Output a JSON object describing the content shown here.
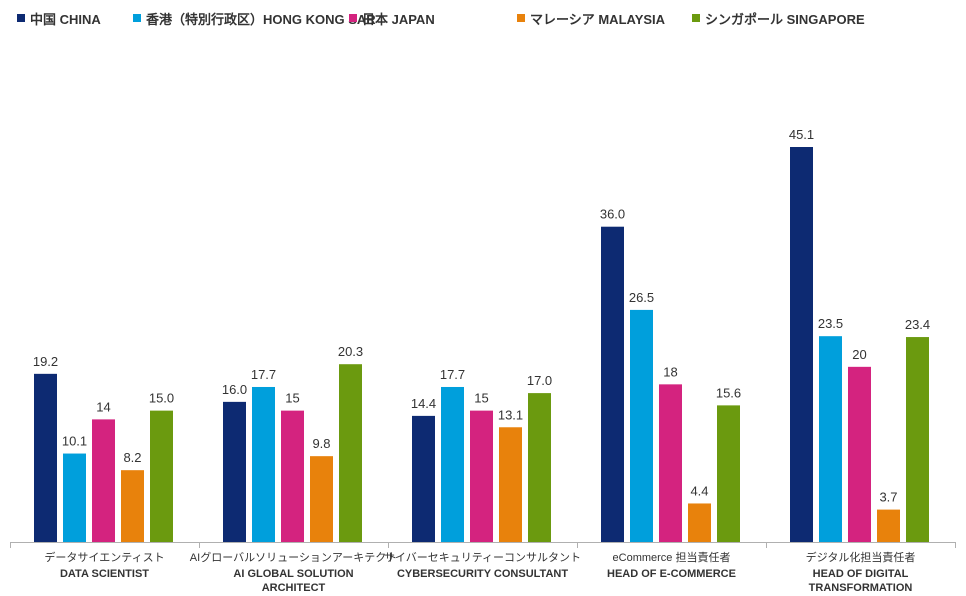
{
  "chart_data": {
    "type": "bar",
    "categories": [
      {
        "ja": "データサイエンティスト",
        "en": [
          "DATA SCIENTIST"
        ]
      },
      {
        "ja": "AIグローバルソリューションアーキテクト",
        "en": [
          "AI GLOBAL SOLUTION",
          "ARCHITECT"
        ]
      },
      {
        "ja": "サイバーセキュリティーコンサルタント",
        "en": [
          "CYBERSECURITY CONSULTANT"
        ]
      },
      {
        "ja": "eCommerce 担当責任者",
        "en": [
          "HEAD OF E-COMMERCE"
        ]
      },
      {
        "ja": "デジタル化担当責任者",
        "en": [
          "HEAD OF DIGITAL",
          "TRANSFORMATION"
        ]
      }
    ],
    "series": [
      {
        "name": "中国 CHINA",
        "color": "#0d2a72",
        "values": [
          19.2,
          16.0,
          14.4,
          36.0,
          45.1
        ],
        "labels": [
          "19.2",
          "16.0",
          "14.4",
          "36.0",
          "45.1"
        ]
      },
      {
        "name": "香港（特別行政区）HONG KONG SAR",
        "color": "#009fdc",
        "values": [
          10.1,
          17.7,
          17.7,
          26.5,
          23.5
        ],
        "labels": [
          "10.1",
          "17.7",
          "17.7",
          "26.5",
          "23.5"
        ]
      },
      {
        "name": "日本 JAPAN",
        "color": "#d4237f",
        "values": [
          14,
          15,
          15,
          18,
          20
        ],
        "labels": [
          "14",
          "15",
          "15",
          "18",
          "20"
        ]
      },
      {
        "name": "マレーシア MALAYSIA",
        "color": "#e8820c",
        "values": [
          8.2,
          9.8,
          13.1,
          4.4,
          3.7
        ],
        "labels": [
          "8.2",
          "9.8",
          "13.1",
          "4.4",
          "3.7"
        ]
      },
      {
        "name": "シンガポール SINGAPORE",
        "color": "#6b9a0f",
        "values": [
          15.0,
          20.3,
          17.0,
          15.6,
          23.4
        ],
        "labels": [
          "15.0",
          "20.3",
          "17.0",
          "15.6",
          "23.4"
        ]
      }
    ],
    "ylim": [
      0,
      45.1
    ],
    "grid": false,
    "legend_position": "top-left"
  }
}
